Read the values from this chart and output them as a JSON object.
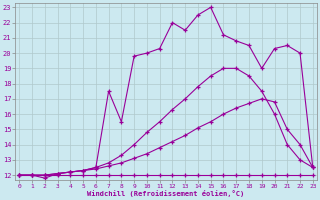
{
  "xlabel": "Windchill (Refroidissement éolien,°C)",
  "xlim_min": -0.3,
  "xlim_max": 23.3,
  "ylim_min": 11.7,
  "ylim_max": 23.3,
  "xticks": [
    0,
    1,
    2,
    3,
    4,
    5,
    6,
    7,
    8,
    9,
    10,
    11,
    12,
    13,
    14,
    15,
    16,
    17,
    18,
    19,
    20,
    21,
    22,
    23
  ],
  "yticks": [
    12,
    13,
    14,
    15,
    16,
    17,
    18,
    19,
    20,
    21,
    22,
    23
  ],
  "background_color": "#cce9f0",
  "line_color": "#990099",
  "grid_color": "#b0c8cc",
  "line1_x": [
    0,
    1,
    2,
    3,
    4,
    5,
    6,
    7,
    8,
    9,
    10,
    11,
    12,
    13,
    14,
    15,
    16,
    17,
    18,
    19,
    20,
    21,
    22,
    23
  ],
  "line1_y": [
    12,
    12,
    12,
    12,
    12,
    12,
    12,
    12,
    12,
    12,
    12,
    12,
    12,
    12,
    12,
    12,
    12,
    12,
    12,
    12,
    12,
    12,
    12,
    12
  ],
  "line2_x": [
    0,
    1,
    2,
    3,
    4,
    5,
    6,
    7,
    8,
    9,
    10,
    11,
    12,
    13,
    14,
    15,
    16,
    17,
    18,
    19,
    20,
    21,
    22,
    23
  ],
  "line2_y": [
    12,
    12,
    12,
    12.1,
    12.2,
    12.3,
    12.4,
    12.6,
    12.8,
    13.1,
    13.4,
    13.8,
    14.2,
    14.6,
    15.1,
    15.5,
    16.0,
    16.4,
    16.7,
    17.0,
    16.8,
    15.0,
    14.0,
    12.5
  ],
  "line3_x": [
    0,
    1,
    2,
    3,
    4,
    5,
    6,
    7,
    8,
    9,
    10,
    11,
    12,
    13,
    14,
    15,
    16,
    17,
    18,
    19,
    20,
    21,
    22,
    23
  ],
  "line3_y": [
    12,
    12,
    12,
    12.1,
    12.2,
    12.3,
    12.5,
    12.8,
    13.3,
    14.0,
    14.8,
    15.5,
    16.3,
    17.0,
    17.8,
    18.5,
    19.0,
    19.0,
    18.5,
    17.5,
    16.0,
    14.0,
    13.0,
    12.5
  ],
  "line4_x": [
    0,
    1,
    2,
    3,
    4,
    5,
    6,
    7,
    8,
    9,
    10,
    11,
    12,
    13,
    14,
    15,
    16,
    17,
    18,
    19,
    20,
    21,
    22,
    23
  ],
  "line4_y": [
    12,
    12,
    11.8,
    12.1,
    12.2,
    12.3,
    12.5,
    17.5,
    15.5,
    19.8,
    20.0,
    20.3,
    22.0,
    21.5,
    22.5,
    23.0,
    21.2,
    20.8,
    20.5,
    19.0,
    20.3,
    20.5,
    20.0,
    12.5
  ]
}
